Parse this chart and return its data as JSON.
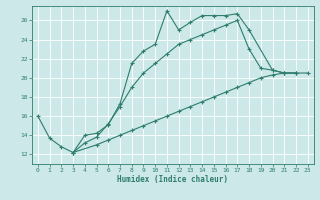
{
  "xlabel": "Humidex (Indice chaleur)",
  "bg_color": "#cce8e8",
  "line_color": "#2e7d6e",
  "grid_color": "#ffffff",
  "xlim": [
    -0.5,
    23.5
  ],
  "ylim": [
    11,
    27.5
  ],
  "xticks": [
    0,
    1,
    2,
    3,
    4,
    5,
    6,
    7,
    8,
    9,
    10,
    11,
    12,
    13,
    14,
    15,
    16,
    17,
    18,
    19,
    20,
    21,
    22,
    23
  ],
  "yticks": [
    12,
    14,
    16,
    18,
    20,
    22,
    24,
    26
  ],
  "line1_x": [
    0,
    1,
    2,
    3,
    4,
    5,
    6,
    7,
    8,
    9,
    10,
    11,
    12,
    13,
    14,
    15,
    16,
    17,
    18,
    20,
    21,
    22
  ],
  "line1_y": [
    16.0,
    13.7,
    12.8,
    12.2,
    14.0,
    14.2,
    15.1,
    17.3,
    21.5,
    22.8,
    23.5,
    27.0,
    25.0,
    25.8,
    26.5,
    26.5,
    26.5,
    26.7,
    25.0,
    20.8,
    20.5,
    20.5
  ],
  "line2_x": [
    3,
    4,
    5,
    6,
    7,
    8,
    9,
    10,
    11,
    12,
    13,
    14,
    15,
    16,
    17,
    18,
    19,
    20,
    21,
    22
  ],
  "line2_y": [
    12.2,
    13.2,
    13.8,
    15.2,
    17.0,
    19.0,
    20.5,
    21.5,
    22.5,
    23.5,
    24.0,
    24.5,
    25.0,
    25.5,
    26.0,
    23.0,
    21.0,
    20.8,
    20.5,
    20.5
  ],
  "line3_x": [
    3,
    5,
    6,
    7,
    8,
    9,
    10,
    11,
    12,
    13,
    14,
    15,
    16,
    17,
    18,
    19,
    20,
    21,
    22,
    23
  ],
  "line3_y": [
    12.2,
    13.0,
    13.5,
    14.0,
    14.5,
    15.0,
    15.5,
    16.0,
    16.5,
    17.0,
    17.5,
    18.0,
    18.5,
    19.0,
    19.5,
    20.0,
    20.3,
    20.5,
    20.5,
    20.5
  ]
}
